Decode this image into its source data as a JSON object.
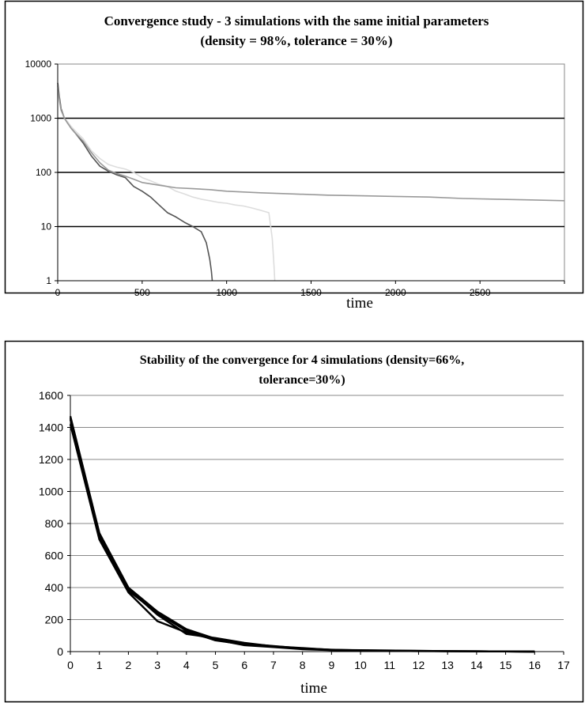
{
  "chart_data": [
    {
      "type": "line",
      "title_lines": [
        "Convergence study - 3 simulations with the same initial parameters",
        "(density = 98%, tolerance = 30%)"
      ],
      "xlabel": "time",
      "ylabel": "",
      "yscale": "log",
      "xlim": [
        0,
        3000
      ],
      "ylim": [
        1,
        10000
      ],
      "x_ticks": [
        0,
        500,
        1000,
        1500,
        2000,
        2500
      ],
      "x_tick_labels": [
        "0",
        "500",
        "1000",
        "1500",
        "2000",
        "2500"
      ],
      "y_ticks": [
        1,
        10,
        100,
        1000,
        10000
      ],
      "y_tick_labels": [
        "1",
        "10",
        "100",
        "1000",
        "10000"
      ],
      "grid": "horizontal",
      "legend": "none",
      "series": [
        {
          "color": "#555555",
          "x": [
            0,
            10,
            20,
            40,
            60,
            80,
            100,
            150,
            200,
            250,
            300,
            350,
            400,
            450,
            500,
            550,
            600,
            650,
            700,
            750,
            800,
            850,
            880,
            900,
            910,
            915
          ],
          "y": [
            4500,
            2500,
            1500,
            1000,
            800,
            650,
            550,
            350,
            200,
            130,
            105,
            90,
            80,
            55,
            45,
            35,
            25,
            18,
            15,
            12,
            10,
            8,
            5,
            2.5,
            1.5,
            1
          ]
        },
        {
          "color": "#dddddd",
          "x": [
            0,
            10,
            20,
            40,
            60,
            80,
            100,
            150,
            200,
            250,
            300,
            350,
            400,
            450,
            500,
            550,
            600,
            650,
            700,
            750,
            800,
            850,
            900,
            950,
            1000,
            1050,
            1100,
            1150,
            1200,
            1250,
            1270,
            1280,
            1285
          ],
          "y": [
            3500,
            2000,
            1400,
            1000,
            850,
            700,
            600,
            420,
            250,
            180,
            140,
            125,
            115,
            100,
            80,
            70,
            60,
            55,
            45,
            40,
            35,
            32,
            30,
            28,
            27,
            25,
            24,
            22,
            20,
            18,
            6,
            2,
            1
          ]
        },
        {
          "color": "#999999",
          "x": [
            0,
            10,
            20,
            40,
            60,
            80,
            100,
            150,
            200,
            250,
            300,
            350,
            400,
            450,
            500,
            600,
            700,
            800,
            900,
            1000,
            1200,
            1400,
            1600,
            1800,
            2000,
            2200,
            2400,
            2600,
            2800,
            3000
          ],
          "y": [
            4000,
            2200,
            1400,
            1000,
            800,
            650,
            550,
            380,
            230,
            150,
            110,
            95,
            85,
            75,
            65,
            58,
            52,
            50,
            48,
            45,
            42,
            40,
            38,
            37,
            36,
            35,
            33,
            32,
            31,
            30
          ]
        }
      ]
    },
    {
      "type": "line",
      "title_lines": [
        "Stability of the convergence for 4 simulations (density=66%,",
        "tolerance=30%)"
      ],
      "xlabel": "time",
      "ylabel": "",
      "xlim": [
        0,
        17
      ],
      "ylim": [
        0,
        1600
      ],
      "x_ticks": [
        0,
        1,
        2,
        3,
        4,
        5,
        6,
        7,
        8,
        9,
        10,
        11,
        12,
        13,
        14,
        15,
        16,
        17
      ],
      "x_tick_labels": [
        "0",
        "1",
        "2",
        "3",
        "4",
        "5",
        "6",
        "7",
        "8",
        "9",
        "10",
        "11",
        "12",
        "13",
        "14",
        "15",
        "16",
        "17"
      ],
      "y_ticks": [
        0,
        200,
        400,
        600,
        800,
        1000,
        1200,
        1400,
        1600
      ],
      "y_tick_labels": [
        "0",
        "200",
        "400",
        "600",
        "800",
        "1000",
        "1200",
        "1400",
        "1600"
      ],
      "grid": "horizontal",
      "legend": "none",
      "series": [
        {
          "color": "#000000",
          "x": [
            0,
            1,
            2,
            3,
            4,
            5,
            6,
            7,
            8,
            9,
            10,
            11,
            12,
            13,
            14,
            15,
            16
          ],
          "y": [
            1470,
            740,
            400,
            250,
            140,
            80,
            50,
            35,
            20,
            12,
            8,
            6,
            4,
            3,
            2,
            1,
            0
          ]
        },
        {
          "color": "#000000",
          "x": [
            0,
            1,
            2,
            3,
            4,
            5,
            6,
            7,
            8,
            9,
            10,
            11,
            12,
            13,
            14,
            15,
            16
          ],
          "y": [
            1450,
            720,
            380,
            240,
            130,
            70,
            45,
            30,
            18,
            10,
            7,
            5,
            4,
            3,
            2,
            1,
            0
          ]
        },
        {
          "color": "#000000",
          "x": [
            0,
            1,
            2,
            3,
            4,
            5,
            6,
            7,
            8,
            9,
            10,
            11,
            12,
            13,
            14,
            15,
            16
          ],
          "y": [
            1420,
            700,
            370,
            190,
            120,
            75,
            40,
            28,
            15,
            9,
            6,
            5,
            3,
            2,
            1,
            1,
            0
          ]
        },
        {
          "color": "#000000",
          "x": [
            0,
            1,
            2,
            3,
            4,
            5,
            6,
            7,
            8,
            9,
            10,
            11,
            12,
            13,
            14,
            15,
            16
          ],
          "y": [
            1460,
            730,
            390,
            230,
            110,
            85,
            55,
            33,
            22,
            11,
            9,
            7,
            5,
            3,
            2,
            1,
            0
          ]
        }
      ]
    }
  ]
}
